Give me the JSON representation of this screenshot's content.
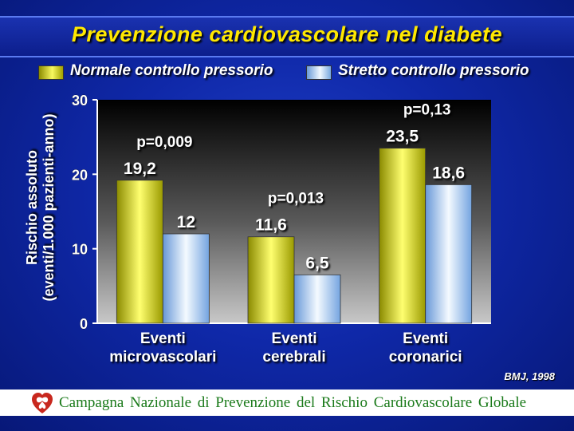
{
  "title": "Prevenzione cardiovascolare nel diabete",
  "legend": [
    {
      "label": "Normale controllo pressorio",
      "color": "#e0e020"
    },
    {
      "label": "Stretto controllo pressorio",
      "color": "#a8d0f8"
    }
  ],
  "source": "BMJ, 1998",
  "footer": "Campagna Nazionale di Prevenzione del Rischio Cardiovascolare Globale",
  "chart_data": {
    "type": "bar",
    "ylabel": "Rischio assoluto\n(eventi/1.000 pazienti-anno)",
    "ylim": [
      0,
      30
    ],
    "yticks": [
      0,
      10,
      20,
      30
    ],
    "categories": [
      [
        "Eventi",
        "microvascolari"
      ],
      [
        "Eventi",
        "cerebrali"
      ],
      [
        "Eventi",
        "coronarici"
      ]
    ],
    "series": [
      {
        "name": "Normale controllo pressorio",
        "values": [
          19.2,
          11.6,
          23.5
        ],
        "labels": [
          "19,2",
          "11,6",
          "23,5"
        ]
      },
      {
        "name": "Stretto controllo pressorio",
        "values": [
          12,
          6.5,
          18.6
        ],
        "labels": [
          "12",
          "6,5",
          "18,6"
        ]
      }
    ],
    "p_values": [
      "p=0,009",
      "p=0,013",
      "p=0,13"
    ],
    "grid": false,
    "legend_position": "top"
  }
}
